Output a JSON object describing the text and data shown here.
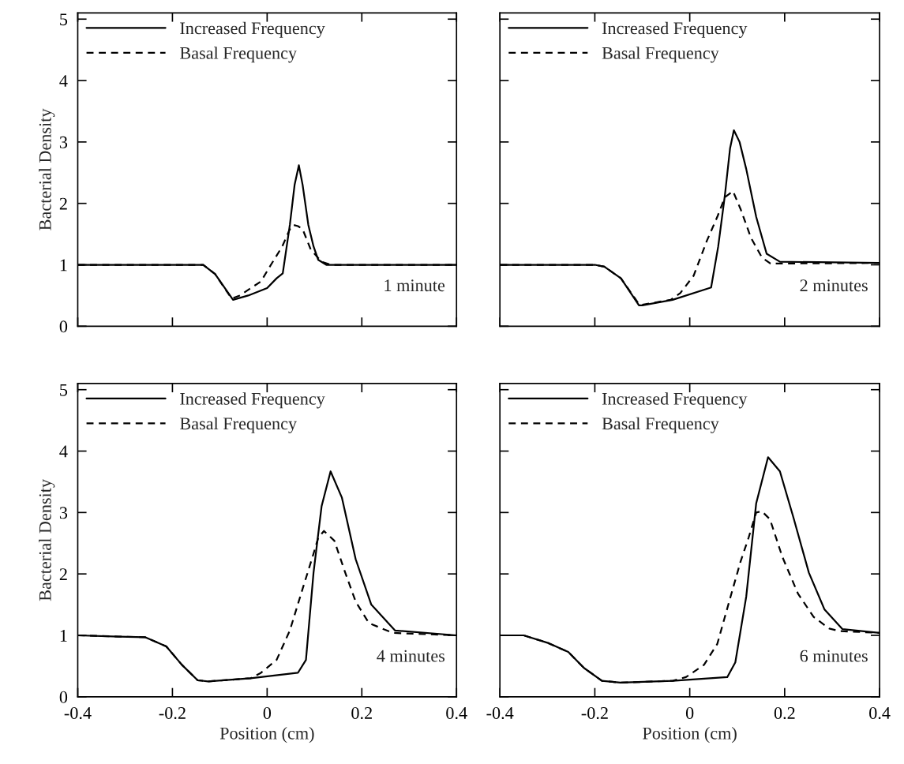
{
  "chart_data": [
    {
      "type": "line",
      "ylabel": "Bacterial Density",
      "xlim": [
        -0.4,
        0.4
      ],
      "ylim": [
        0,
        5.1
      ],
      "xticks": [
        -0.4,
        -0.2,
        0,
        0.2,
        0.4
      ],
      "yticks": [
        0,
        1,
        2,
        3,
        4,
        5
      ],
      "tick_labels": "y",
      "legend": "top left",
      "grid": false,
      "annotations": [
        "1 minute"
      ],
      "series": [
        {
          "name": "Increased Frequency",
          "color": "#000000",
          "line_style": "solid",
          "x": [
            -0.4,
            -0.135,
            -0.11,
            -0.072,
            -0.04,
            0.0,
            0.02,
            0.033,
            0.048,
            0.058,
            0.067,
            0.075,
            0.087,
            0.098,
            0.108,
            0.125,
            0.4
          ],
          "values": [
            1.0,
            1.0,
            0.85,
            0.43,
            0.5,
            0.62,
            0.78,
            0.86,
            1.65,
            2.3,
            2.62,
            2.3,
            1.65,
            1.3,
            1.08,
            1.0,
            1.0
          ]
        },
        {
          "name": "Basal Frequency",
          "color": "#000000",
          "line_style": "dashed",
          "x": [
            -0.4,
            -0.135,
            -0.11,
            -0.075,
            -0.058,
            -0.013,
            0.008,
            0.032,
            0.048,
            0.055,
            0.065,
            0.075,
            0.092,
            0.115,
            0.135,
            0.4
          ],
          "values": [
            1.0,
            1.0,
            0.85,
            0.45,
            0.5,
            0.73,
            1.0,
            1.3,
            1.58,
            1.65,
            1.63,
            1.58,
            1.25,
            1.05,
            1.0,
            1.0
          ]
        }
      ]
    },
    {
      "type": "line",
      "xlim": [
        -0.4,
        0.4
      ],
      "ylim": [
        0,
        5.1
      ],
      "xticks": [
        -0.4,
        -0.2,
        0,
        0.2,
        0.4
      ],
      "yticks": [
        0,
        1,
        2,
        3,
        4,
        5
      ],
      "tick_labels": false,
      "legend": "top left",
      "grid": false,
      "annotations": [
        "2 minutes"
      ],
      "series": [
        {
          "name": "Increased Frequency",
          "color": "#000000",
          "line_style": "solid",
          "x": [
            -0.4,
            -0.2,
            -0.18,
            -0.145,
            -0.107,
            -0.1,
            -0.036,
            0.045,
            0.06,
            0.074,
            0.085,
            0.093,
            0.105,
            0.119,
            0.14,
            0.162,
            0.19,
            0.4
          ],
          "values": [
            1.0,
            1.0,
            0.97,
            0.78,
            0.34,
            0.34,
            0.43,
            0.63,
            1.3,
            2.13,
            2.9,
            3.19,
            3.0,
            2.56,
            1.78,
            1.18,
            1.05,
            1.03
          ]
        },
        {
          "name": "Basal Frequency",
          "color": "#000000",
          "line_style": "dashed",
          "x": [
            -0.4,
            -0.2,
            -0.18,
            -0.145,
            -0.107,
            -0.1,
            -0.04,
            -0.02,
            0.008,
            0.036,
            0.058,
            0.074,
            0.091,
            0.107,
            0.129,
            0.152,
            0.17,
            0.4
          ],
          "values": [
            1.0,
            1.0,
            0.97,
            0.78,
            0.36,
            0.35,
            0.43,
            0.54,
            0.82,
            1.39,
            1.78,
            2.1,
            2.2,
            1.91,
            1.44,
            1.12,
            1.02,
            1.03
          ]
        }
      ]
    },
    {
      "type": "line",
      "xlabel": "Position (cm)",
      "ylabel": "Bacterial Density",
      "xlim": [
        -0.4,
        0.4
      ],
      "ylim": [
        0,
        5.1
      ],
      "xticks": [
        -0.4,
        -0.2,
        0,
        0.2,
        0.4
      ],
      "yticks": [
        0,
        1,
        2,
        3,
        4,
        5
      ],
      "legend": "top left",
      "grid": false,
      "annotations": [
        "4 minutes"
      ],
      "series": [
        {
          "name": "Increased Frequency",
          "color": "#000000",
          "line_style": "solid",
          "x": [
            -0.4,
            -0.313,
            -0.258,
            -0.213,
            -0.18,
            -0.147,
            -0.125,
            -0.035,
            0.065,
            0.082,
            0.098,
            0.115,
            0.134,
            0.158,
            0.187,
            0.22,
            0.27,
            0.4
          ],
          "values": [
            1.0,
            0.98,
            0.97,
            0.82,
            0.52,
            0.27,
            0.25,
            0.3,
            0.39,
            0.6,
            2.02,
            3.1,
            3.67,
            3.24,
            2.24,
            1.5,
            1.08,
            1.0
          ]
        },
        {
          "name": "Basal Frequency",
          "color": "#000000",
          "line_style": "dashed",
          "x": [
            -0.4,
            -0.313,
            -0.258,
            -0.213,
            -0.18,
            -0.147,
            -0.125,
            -0.035,
            -0.013,
            0.02,
            0.048,
            0.075,
            0.098,
            0.108,
            0.12,
            0.142,
            0.165,
            0.187,
            0.215,
            0.265,
            0.4
          ],
          "values": [
            1.0,
            0.98,
            0.97,
            0.82,
            0.52,
            0.27,
            0.25,
            0.3,
            0.39,
            0.6,
            1.08,
            1.76,
            2.33,
            2.59,
            2.7,
            2.54,
            2.02,
            1.55,
            1.2,
            1.04,
            1.0
          ]
        }
      ]
    },
    {
      "type": "line",
      "xlabel": "Position (cm)",
      "xlim": [
        -0.4,
        0.4
      ],
      "ylim": [
        0,
        5.1
      ],
      "xticks": [
        -0.4,
        -0.2,
        0,
        0.2,
        0.4
      ],
      "yticks": [
        0,
        1,
        2,
        3,
        4,
        5
      ],
      "tick_labels": "x",
      "legend": "top left",
      "grid": false,
      "annotations": [
        "6 minutes"
      ],
      "series": [
        {
          "name": "Increased Frequency",
          "color": "#000000",
          "line_style": "solid",
          "x": [
            -0.4,
            -0.35,
            -0.3,
            -0.256,
            -0.223,
            -0.185,
            -0.146,
            -0.036,
            0.079,
            0.096,
            0.119,
            0.14,
            0.165,
            0.19,
            0.218,
            0.251,
            0.284,
            0.322,
            0.4
          ],
          "values": [
            1.0,
            1.0,
            0.88,
            0.73,
            0.47,
            0.26,
            0.23,
            0.26,
            0.32,
            0.56,
            1.63,
            3.15,
            3.9,
            3.67,
            2.93,
            2.02,
            1.42,
            1.1,
            1.04
          ]
        },
        {
          "name": "Basal Frequency",
          "color": "#000000",
          "line_style": "dashed",
          "x": [
            -0.4,
            -0.35,
            -0.3,
            -0.256,
            -0.223,
            -0.185,
            -0.146,
            -0.036,
            -0.008,
            0.03,
            0.058,
            0.086,
            0.107,
            0.124,
            0.14,
            0.152,
            0.169,
            0.195,
            0.228,
            0.261,
            0.294,
            0.315,
            0.4
          ],
          "values": [
            1.0,
            1.0,
            0.88,
            0.73,
            0.47,
            0.26,
            0.23,
            0.26,
            0.32,
            0.52,
            0.86,
            1.63,
            2.2,
            2.59,
            3.0,
            3.02,
            2.89,
            2.28,
            1.68,
            1.3,
            1.11,
            1.07,
            1.04
          ]
        }
      ]
    }
  ]
}
